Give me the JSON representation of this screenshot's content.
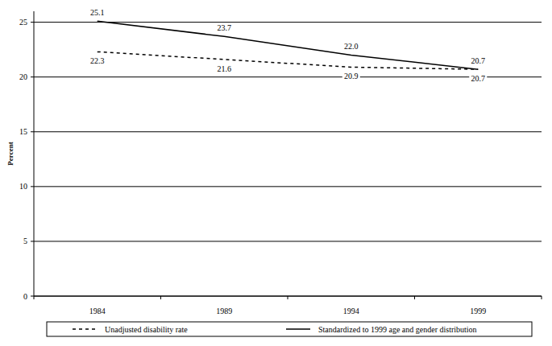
{
  "chart_data": {
    "type": "line",
    "y_label": "Percent",
    "categories": [
      "1984",
      "1989",
      "1994",
      "1999"
    ],
    "series": [
      {
        "name": "Unadjusted disability rate",
        "color": "#000000",
        "line_style": "dashed",
        "values": [
          22.3,
          21.6,
          20.9,
          20.7
        ]
      },
      {
        "name": "Standardized to 1999 age and gender distribution",
        "color": "#000000",
        "line_style": "solid",
        "values": [
          25.1,
          23.7,
          22.0,
          20.7
        ],
        "value_labels": [
          "25.1",
          "23.7",
          "22.0",
          "20.7"
        ]
      }
    ],
    "ylim": [
      0,
      26
    ],
    "yticks": [
      0,
      5,
      10,
      15,
      20,
      25
    ],
    "grid": true,
    "data_labels": true,
    "legend": "bottom"
  }
}
